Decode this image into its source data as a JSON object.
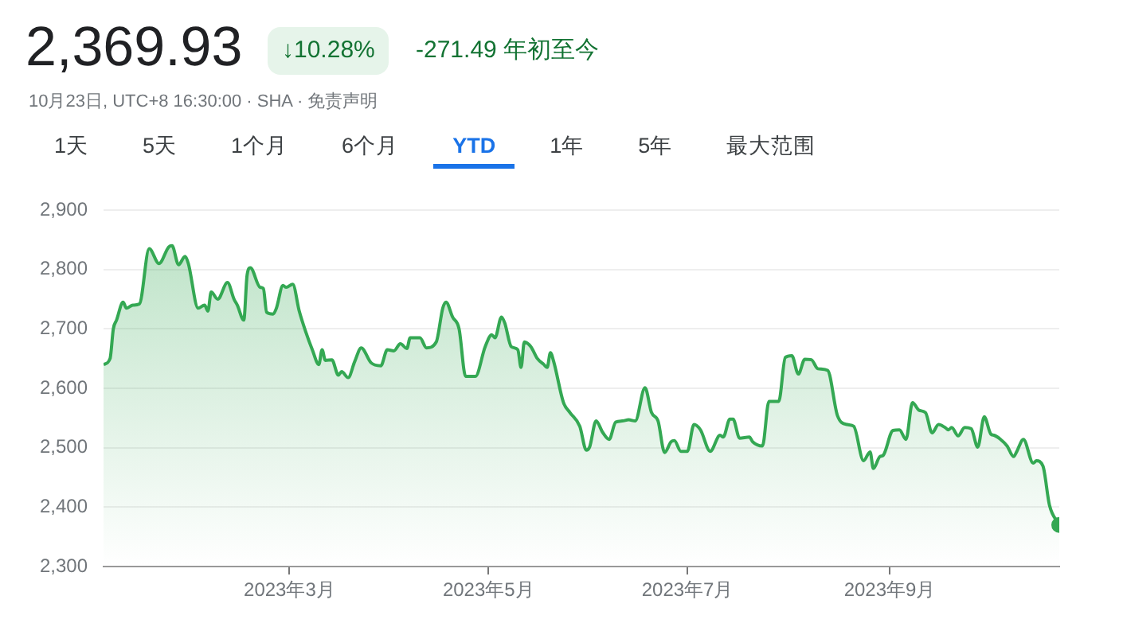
{
  "chart_data": {
    "type": "area",
    "title": "2,369.93",
    "subtitle": "10月23日, UTC+8 16:30:00 · SHA · 免责声明",
    "annotations": [
      "↓10.28%",
      "-271.49 年初至今",
      "1天",
      "5天",
      "1个月",
      "6个月",
      "YTD",
      "1年",
      "5年",
      "最大范围"
    ],
    "x": [
      "2023-01-03",
      "2023-01-05",
      "2023-01-06",
      "2023-01-07",
      "2023-01-09",
      "2023-01-10",
      "2023-01-12",
      "2023-01-14",
      "2023-01-17",
      "2023-01-20",
      "2023-01-23",
      "2023-01-24",
      "2023-01-26",
      "2023-01-28",
      "2023-01-29",
      "2023-02-01",
      "2023-02-03",
      "2023-02-04",
      "2023-02-05",
      "2023-02-07",
      "2023-02-10",
      "2023-02-12",
      "2023-02-13",
      "2023-02-15",
      "2023-02-16",
      "2023-02-17",
      "2023-02-20",
      "2023-02-21",
      "2023-02-22",
      "2023-02-24",
      "2023-02-25",
      "2023-02-27",
      "2023-02-28",
      "2023-03-02",
      "2023-03-04",
      "2023-03-06",
      "2023-03-08",
      "2023-03-10",
      "2023-03-11",
      "2023-03-12",
      "2023-03-14",
      "2023-03-16",
      "2023-03-17",
      "2023-03-19",
      "2023-03-21",
      "2023-03-23",
      "2023-03-26",
      "2023-03-29",
      "2023-03-31",
      "2023-04-02",
      "2023-04-04",
      "2023-04-06",
      "2023-04-07",
      "2023-04-10",
      "2023-04-12",
      "2023-04-15",
      "2023-04-17",
      "2023-04-18",
      "2023-04-20",
      "2023-04-22",
      "2023-04-24",
      "2023-04-27",
      "2023-04-30",
      "2023-05-02",
      "2023-05-03",
      "2023-05-05",
      "2023-05-06",
      "2023-05-08",
      "2023-05-10",
      "2023-05-11",
      "2023-05-12",
      "2023-05-14",
      "2023-05-16",
      "2023-05-18",
      "2023-05-19",
      "2023-05-20",
      "2023-05-21",
      "2023-05-24",
      "2023-05-26",
      "2023-05-29",
      "2023-05-31",
      "2023-06-01",
      "2023-06-03",
      "2023-06-05",
      "2023-06-07",
      "2023-06-09",
      "2023-06-11",
      "2023-06-13",
      "2023-06-15",
      "2023-06-18",
      "2023-06-20",
      "2023-06-22",
      "2023-06-24",
      "2023-06-26",
      "2023-06-27",
      "2023-06-29",
      "2023-07-01",
      "2023-07-03",
      "2023-07-05",
      "2023-07-08",
      "2023-07-11",
      "2023-07-12",
      "2023-07-14",
      "2023-07-15",
      "2023-07-17",
      "2023-07-20",
      "2023-07-21",
      "2023-07-24",
      "2023-07-26",
      "2023-07-29",
      "2023-07-31",
      "2023-08-02",
      "2023-08-04",
      "2023-08-06",
      "2023-08-08",
      "2023-08-10",
      "2023-08-13",
      "2023-08-16",
      "2023-08-19",
      "2023-08-21",
      "2023-08-24",
      "2023-08-26",
      "2023-08-27",
      "2023-08-29",
      "2023-08-30",
      "2023-09-02",
      "2023-09-04",
      "2023-09-06",
      "2023-09-08",
      "2023-09-10",
      "2023-09-12",
      "2023-09-14",
      "2023-09-16",
      "2023-09-18",
      "2023-09-19",
      "2023-09-20",
      "2023-09-22",
      "2023-09-24",
      "2023-09-26",
      "2023-09-28",
      "2023-09-30",
      "2023-10-02",
      "2023-10-03",
      "2023-10-05",
      "2023-10-07",
      "2023-10-09",
      "2023-10-10",
      "2023-10-12",
      "2023-10-15",
      "2023-10-16",
      "2023-10-18",
      "2023-10-20",
      "2023-10-23"
    ],
    "series": [
      {
        "color": "#34a853",
        "values": [
          2640,
          2650,
          2700,
          2715,
          2745,
          2735,
          2740,
          2742,
          2835,
          2810,
          2838,
          2840,
          2808,
          2822,
          2810,
          2735,
          2740,
          2730,
          2762,
          2750,
          2778,
          2750,
          2740,
          2715,
          2790,
          2803,
          2770,
          2768,
          2728,
          2725,
          2735,
          2773,
          2770,
          2775,
          2730,
          2695,
          2665,
          2640,
          2665,
          2647,
          2648,
          2622,
          2628,
          2618,
          2645,
          2668,
          2643,
          2638,
          2665,
          2663,
          2675,
          2667,
          2685,
          2685,
          2668,
          2678,
          2735,
          2745,
          2720,
          2700,
          2620,
          2620,
          2670,
          2690,
          2685,
          2720,
          2710,
          2670,
          2665,
          2635,
          2678,
          2670,
          2650,
          2640,
          2635,
          2660,
          2645,
          2576,
          2559,
          2536,
          2496,
          2501,
          2545,
          2526,
          2514,
          2543,
          2545,
          2547,
          2545,
          2601,
          2559,
          2545,
          2492,
          2510,
          2512,
          2494,
          2494,
          2539,
          2530,
          2494,
          2521,
          2518,
          2548,
          2548,
          2516,
          2518,
          2510,
          2503,
          2578,
          2578,
          2652,
          2655,
          2624,
          2649,
          2648,
          2633,
          2630,
          2554,
          2539,
          2536,
          2478,
          2493,
          2465,
          2485,
          2487,
          2529,
          2530,
          2514,
          2576,
          2563,
          2559,
          2525,
          2539,
          2534,
          2530,
          2534,
          2520,
          2534,
          2532,
          2501,
          2552,
          2523,
          2521,
          2514,
          2503,
          2485,
          2494,
          2514,
          2474,
          2478,
          2469,
          2403,
          2369.93
        ]
      }
    ],
    "xlim": [
      "2023-01-03",
      "2023-10-23"
    ],
    "xticks": [
      {
        "value": "2023-03-01",
        "label": "2023年3月"
      },
      {
        "value": "2023-05-01",
        "label": "2023年5月"
      },
      {
        "value": "2023-07-01",
        "label": "2023年7月"
      },
      {
        "value": "2023-09-01",
        "label": "2023年9月"
      }
    ],
    "ylim": [
      2300,
      2900
    ],
    "yticks": [
      {
        "value": 2300,
        "label": "2,300"
      },
      {
        "value": 2400,
        "label": "2,400"
      },
      {
        "value": 2500,
        "label": "2,500"
      },
      {
        "value": 2600,
        "label": "2,600"
      },
      {
        "value": 2700,
        "label": "2,700"
      },
      {
        "value": 2800,
        "label": "2,800"
      },
      {
        "value": 2900,
        "label": "2,900"
      }
    ],
    "grid": "y",
    "legend": false
  }
}
